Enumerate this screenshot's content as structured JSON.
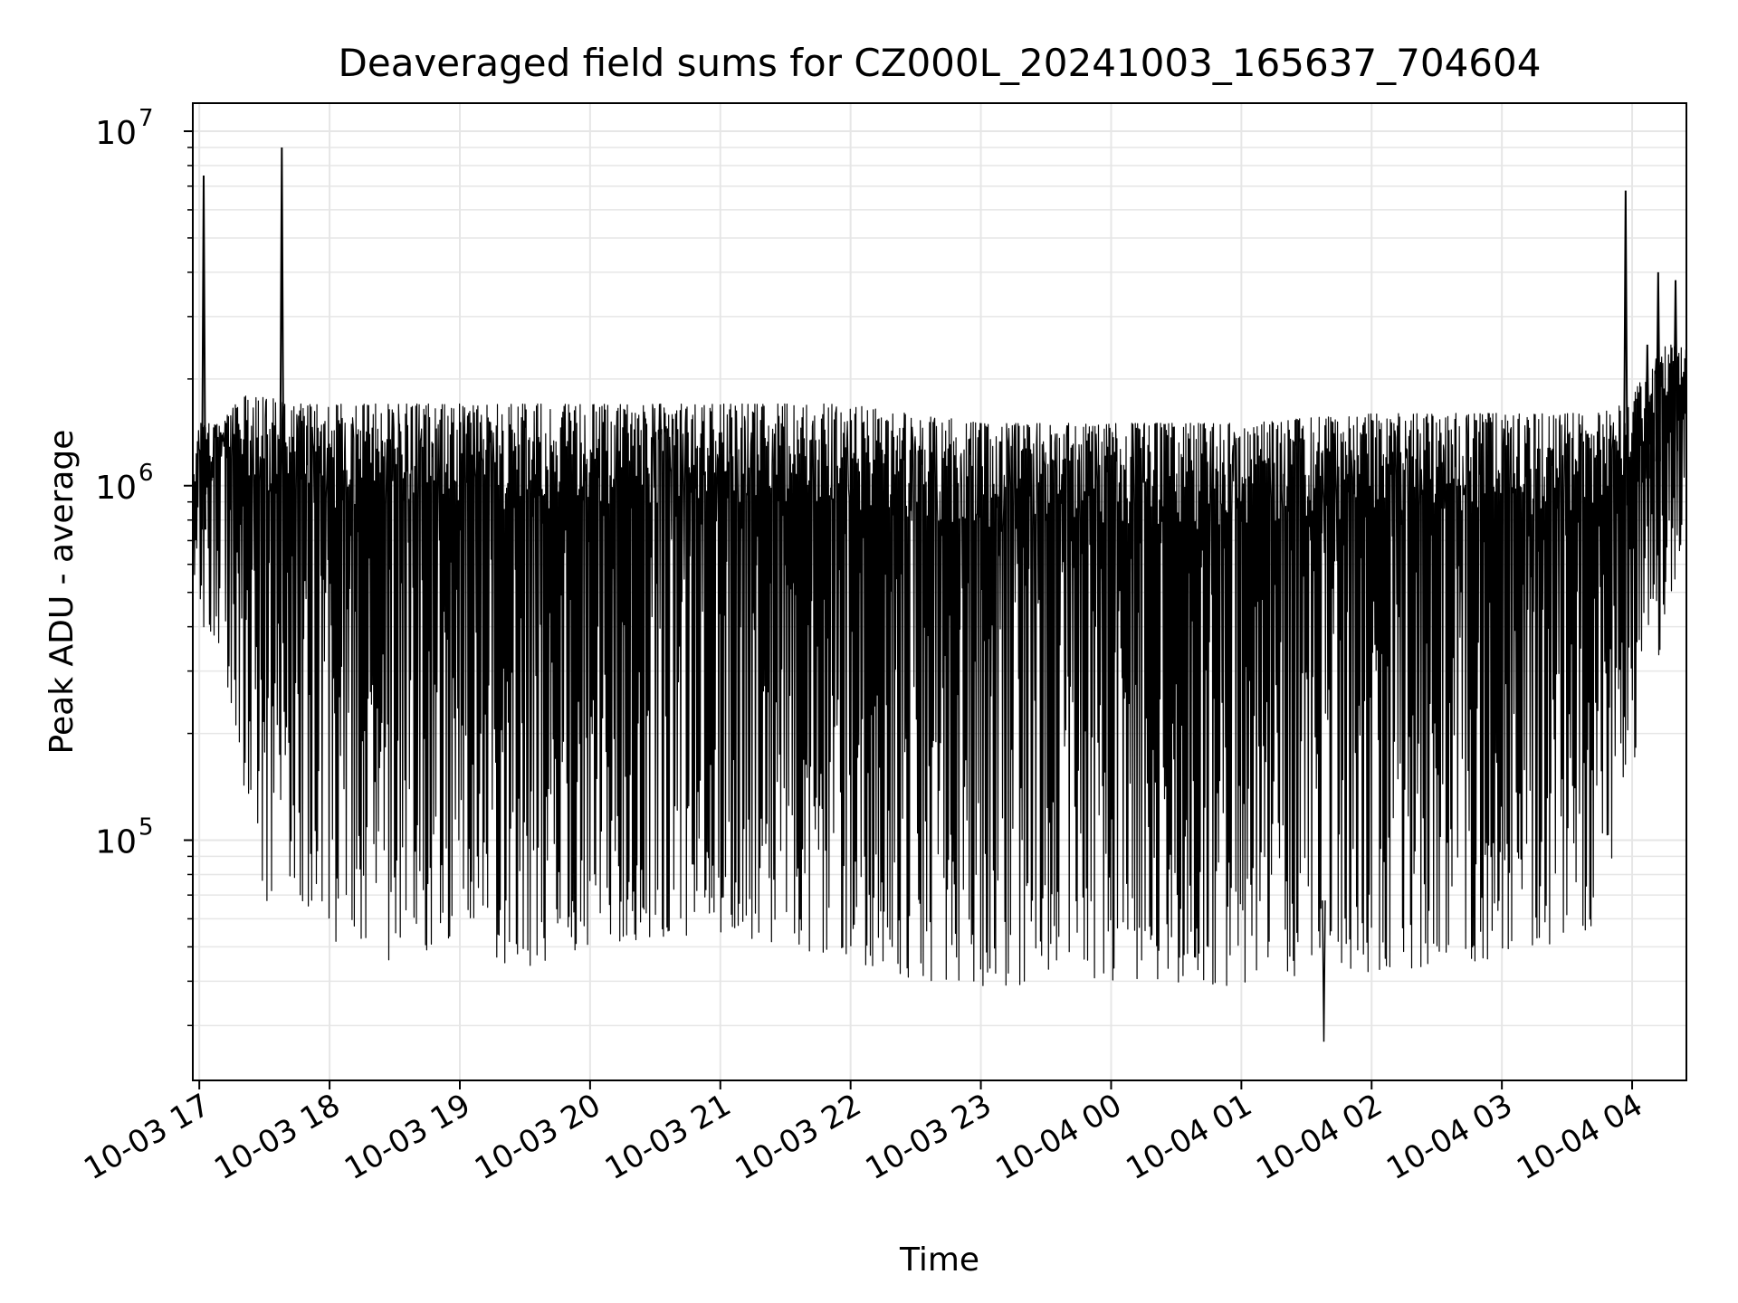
{
  "chart_data": {
    "type": "line",
    "title": "Deaveraged field sums for CZ000L_20241003_165637_704604",
    "xlabel": "Time",
    "ylabel": "Peak ADU - average",
    "yscale": "log",
    "grid": true,
    "x_start": "2024-10-03T16:57:00",
    "x_end": "2024-10-04T04:25:00",
    "xlim": [
      "2024-10-03T16:57:00",
      "2024-10-04T04:25:00"
    ],
    "ylim": [
      21000,
      12000000
    ],
    "x_ticks": [
      {
        "value": "2024-10-03T17:00",
        "label": "10-03 17"
      },
      {
        "value": "2024-10-03T18:00",
        "label": "10-03 18"
      },
      {
        "value": "2024-10-03T19:00",
        "label": "10-03 19"
      },
      {
        "value": "2024-10-03T20:00",
        "label": "10-03 20"
      },
      {
        "value": "2024-10-03T21:00",
        "label": "10-03 21"
      },
      {
        "value": "2024-10-03T22:00",
        "label": "10-03 22"
      },
      {
        "value": "2024-10-03T23:00",
        "label": "10-03 23"
      },
      {
        "value": "2024-10-04T00:00",
        "label": "10-04 00"
      },
      {
        "value": "2024-10-04T01:00",
        "label": "10-04 01"
      },
      {
        "value": "2024-10-04T02:00",
        "label": "10-04 02"
      },
      {
        "value": "2024-10-04T03:00",
        "label": "10-04 03"
      },
      {
        "value": "2024-10-04T04:00",
        "label": "10-04 04"
      }
    ],
    "y_ticks": [
      {
        "value": 100000,
        "mantissa": "10",
        "exponent": "5"
      },
      {
        "value": 1000000,
        "mantissa": "10",
        "exponent": "6"
      },
      {
        "value": 10000000,
        "mantissa": "10",
        "exponent": "7"
      }
    ],
    "series": [
      {
        "color": "#000000",
        "envelope": [
          {
            "t": "2024-10-03T16:57",
            "high": 1000000,
            "low": 600000
          },
          {
            "t": "2024-10-03T17:00",
            "high": 1500000,
            "low": 400000
          },
          {
            "t": "2024-10-03T17:10",
            "high": 1500000,
            "low": 280000
          },
          {
            "t": "2024-10-03T17:20",
            "high": 1800000,
            "low": 120000
          },
          {
            "t": "2024-10-03T17:30",
            "high": 1800000,
            "low": 55000
          },
          {
            "t": "2024-10-03T17:40",
            "high": 1700000,
            "low": 70000
          },
          {
            "t": "2024-10-03T18:00",
            "high": 1700000,
            "low": 40000
          },
          {
            "t": "2024-10-03T18:30",
            "high": 1700000,
            "low": 36000
          },
          {
            "t": "2024-10-03T19:00",
            "high": 1700000,
            "low": 45000
          },
          {
            "t": "2024-10-03T19:30",
            "high": 1700000,
            "low": 34000
          },
          {
            "t": "2024-10-03T20:00",
            "high": 1700000,
            "low": 42000
          },
          {
            "t": "2024-10-03T21:00",
            "high": 1700000,
            "low": 46000
          },
          {
            "t": "2024-10-03T22:00",
            "high": 1700000,
            "low": 38000
          },
          {
            "t": "2024-10-03T22:30",
            "high": 1600000,
            "low": 33000
          },
          {
            "t": "2024-10-03T23:00",
            "high": 1500000,
            "low": 32000
          },
          {
            "t": "2024-10-04T00:00",
            "high": 1500000,
            "low": 33000
          },
          {
            "t": "2024-10-04T01:00",
            "high": 1500000,
            "low": 32000
          },
          {
            "t": "2024-10-04T02:00",
            "high": 1600000,
            "low": 35000
          },
          {
            "t": "2024-10-04T03:00",
            "high": 1600000,
            "low": 38000
          },
          {
            "t": "2024-10-04T03:40",
            "high": 1600000,
            "low": 45000
          },
          {
            "t": "2024-10-04T03:55",
            "high": 1700000,
            "low": 95000
          },
          {
            "t": "2024-10-04T04:05",
            "high": 2000000,
            "low": 200000
          },
          {
            "t": "2024-10-04T04:15",
            "high": 2500000,
            "low": 350000
          },
          {
            "t": "2024-10-04T04:25",
            "high": 2500000,
            "low": 700000
          }
        ],
        "spikes": [
          {
            "t": "2024-10-03T17:02",
            "value": 7500000
          },
          {
            "t": "2024-10-03T17:38",
            "value": 9000000
          },
          {
            "t": "2024-10-04T03:57",
            "value": 6800000
          },
          {
            "t": "2024-10-04T04:07",
            "value": 2500000
          },
          {
            "t": "2024-10-04T04:12",
            "value": 4000000
          },
          {
            "t": "2024-10-04T04:20",
            "value": 3800000
          }
        ],
        "dips": [
          {
            "t": "2024-10-04T01:38",
            "value": 27000
          }
        ]
      }
    ]
  }
}
